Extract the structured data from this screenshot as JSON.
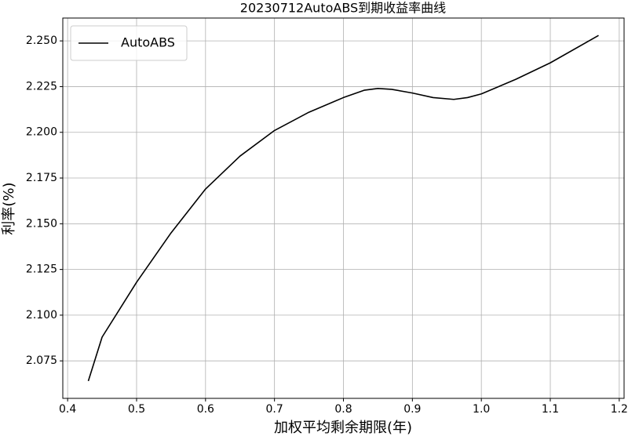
{
  "chart_data": {
    "type": "line",
    "title": "20230712AutoABS到期收益率曲线",
    "x_label": "加权平均剩余期限(年)",
    "y_label": "利率(%)",
    "x": [
      0.43,
      0.45,
      0.475,
      0.5,
      0.55,
      0.6,
      0.65,
      0.7,
      0.75,
      0.8,
      0.83,
      0.85,
      0.87,
      0.9,
      0.93,
      0.96,
      0.98,
      1.0,
      1.05,
      1.1,
      1.17
    ],
    "series": [
      {
        "name": "AutoABS",
        "color": "#000000",
        "values": [
          2.064,
          2.088,
          2.103,
          2.118,
          2.145,
          2.169,
          2.187,
          2.201,
          2.211,
          2.219,
          2.223,
          2.224,
          2.2235,
          2.2215,
          2.219,
          2.218,
          2.219,
          2.221,
          2.229,
          2.238,
          2.253
        ]
      }
    ],
    "xlim": [
      0.393,
      1.207
    ],
    "ylim": [
      2.0545,
      2.2625
    ],
    "xticks": [
      0.4,
      0.5,
      0.6,
      0.7,
      0.8,
      0.9,
      {
        "value": 1.0,
        "label": "1.0"
      },
      1.1,
      1.2
    ],
    "yticks": [
      {
        "value": 2.075,
        "label": "2.075"
      },
      {
        "value": 2.1,
        "label": "2.100"
      },
      {
        "value": 2.125,
        "label": "2.125"
      },
      {
        "value": 2.15,
        "label": "2.150"
      },
      {
        "value": 2.175,
        "label": "2.175"
      },
      {
        "value": 2.2,
        "label": "2.200"
      },
      {
        "value": 2.225,
        "label": "2.225"
      },
      {
        "value": 2.25,
        "label": "2.250"
      }
    ],
    "grid": true,
    "legend": "upper left"
  }
}
